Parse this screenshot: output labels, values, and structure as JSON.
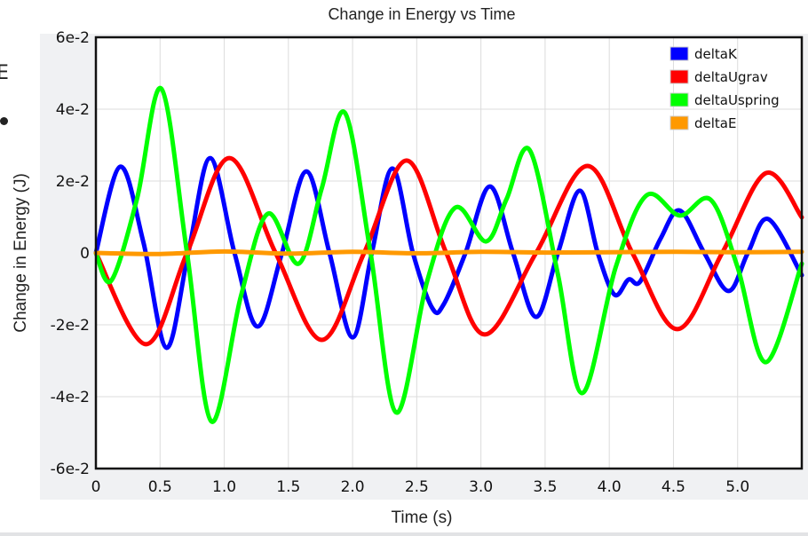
{
  "side": {
    "label": "E"
  },
  "chart_data": {
    "type": "line",
    "title": "Change in Energy vs Time",
    "xlabel": "Time (s)",
    "ylabel": "Change in Energy (J)",
    "xlim": [
      0,
      5.5
    ],
    "ylim": [
      -0.06,
      0.06
    ],
    "grid": true,
    "legend_position": "top-right",
    "xticks": [
      0,
      0.5,
      1.0,
      1.5,
      2.0,
      2.5,
      3.0,
      3.5,
      4.0,
      4.5,
      5.0
    ],
    "xtick_labels": [
      "0",
      "0.5",
      "1.0",
      "1.5",
      "2.0",
      "2.5",
      "3.0",
      "3.5",
      "4.0",
      "4.5",
      "5.0"
    ],
    "yticks": [
      0.06,
      0.04,
      0.02,
      0,
      -0.02,
      -0.04,
      -0.06
    ],
    "ytick_labels": [
      "6e-2",
      "4e-2",
      "2e-2",
      "0",
      "-2e-2",
      "-4e-2",
      "-6e-2"
    ],
    "series": [
      {
        "name": "deltaK",
        "color": "#0000ff",
        "points": [
          [
            0,
            0
          ],
          [
            0.19,
            0.024
          ],
          [
            0.37,
            0.003
          ],
          [
            0.55,
            -0.0264
          ],
          [
            0.72,
            0
          ],
          [
            0.89,
            0.0264
          ],
          [
            1.08,
            0
          ],
          [
            1.26,
            -0.0205
          ],
          [
            1.45,
            0
          ],
          [
            1.64,
            0.0227
          ],
          [
            1.82,
            0
          ],
          [
            2.0,
            -0.0235
          ],
          [
            2.15,
            0
          ],
          [
            2.31,
            0.0235
          ],
          [
            2.47,
            0
          ],
          [
            2.62,
            -0.0153
          ],
          [
            2.71,
            -0.0143
          ],
          [
            2.88,
            0
          ],
          [
            3.07,
            0.0185
          ],
          [
            3.25,
            0
          ],
          [
            3.43,
            -0.0178
          ],
          [
            3.6,
            0
          ],
          [
            3.77,
            0.0173
          ],
          [
            3.91,
            0
          ],
          [
            4.04,
            -0.0116
          ],
          [
            4.15,
            -0.0074
          ],
          [
            4.24,
            -0.008
          ],
          [
            4.4,
            0.004
          ],
          [
            4.55,
            0.0118
          ],
          [
            4.74,
            0
          ],
          [
            4.93,
            -0.0106
          ],
          [
            5.08,
            0
          ],
          [
            5.24,
            0.0094
          ],
          [
            5.5,
            -0.0062
          ]
        ]
      },
      {
        "name": "deltaUgrav",
        "color": "#ff0000",
        "points": [
          [
            0,
            0
          ],
          [
            0.39,
            -0.0254
          ],
          [
            0.71,
            0
          ],
          [
            1.04,
            0.0264
          ],
          [
            1.4,
            0
          ],
          [
            1.76,
            -0.0242
          ],
          [
            2.09,
            0
          ],
          [
            2.42,
            0.0257
          ],
          [
            2.73,
            0
          ],
          [
            3.03,
            -0.0227
          ],
          [
            3.43,
            0
          ],
          [
            3.83,
            0.0242
          ],
          [
            4.18,
            0
          ],
          [
            4.53,
            -0.0212
          ],
          [
            4.88,
            0
          ],
          [
            5.22,
            0.0222
          ],
          [
            5.5,
            0.0099
          ]
        ]
      },
      {
        "name": "deltaUspring",
        "color": "#00ff00",
        "points": [
          [
            0,
            0
          ],
          [
            0.12,
            -0.0077
          ],
          [
            0.32,
            0.015
          ],
          [
            0.51,
            0.0457
          ],
          [
            0.71,
            0
          ],
          [
            0.9,
            -0.0469
          ],
          [
            1.13,
            -0.012
          ],
          [
            1.34,
            0.0109
          ],
          [
            1.58,
            -0.003
          ],
          [
            1.76,
            0.018
          ],
          [
            1.94,
            0.039
          ],
          [
            2.14,
            0
          ],
          [
            2.34,
            -0.0444
          ],
          [
            2.58,
            -0.008
          ],
          [
            2.8,
            0.0126
          ],
          [
            3.04,
            0.0032
          ],
          [
            3.2,
            0.015
          ],
          [
            3.38,
            0.0286
          ],
          [
            3.6,
            -0.006
          ],
          [
            3.79,
            -0.039
          ],
          [
            4.05,
            -0.004
          ],
          [
            4.29,
            0.016
          ],
          [
            4.55,
            0.0104
          ],
          [
            4.79,
            0.0148
          ],
          [
            5.0,
            -0.004
          ],
          [
            5.22,
            -0.0304
          ],
          [
            5.5,
            -0.003
          ]
        ]
      },
      {
        "name": "deltaE",
        "color": "#ff9900",
        "points": [
          [
            0,
            0
          ],
          [
            0.5,
            -0.0003
          ],
          [
            1.0,
            0.0004
          ],
          [
            1.5,
            -0.0002
          ],
          [
            2.0,
            0.0003
          ],
          [
            2.5,
            -0.0001
          ],
          [
            3.0,
            0.0003
          ],
          [
            3.5,
            0.0001
          ],
          [
            4.0,
            0.0002
          ],
          [
            4.5,
            0.0003
          ],
          [
            5.0,
            0.0002
          ],
          [
            5.5,
            0.0003
          ]
        ]
      }
    ]
  }
}
